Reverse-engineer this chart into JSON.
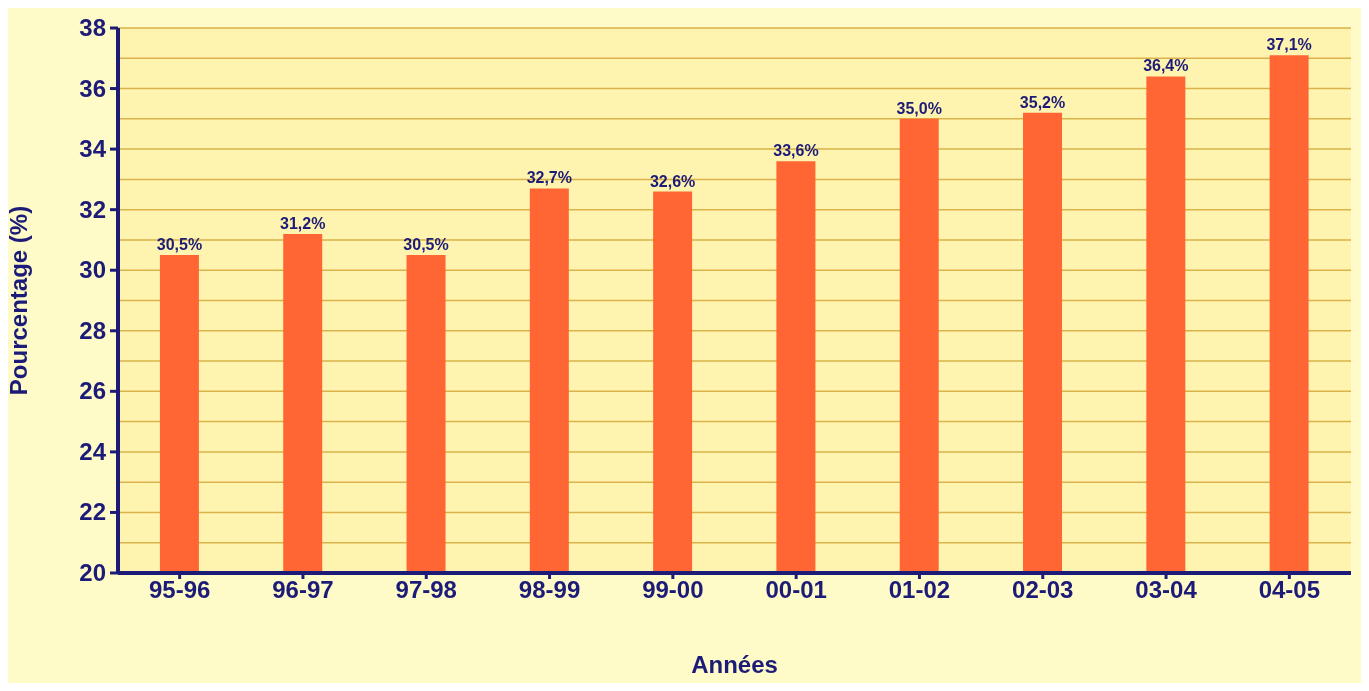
{
  "chart_data": {
    "type": "bar",
    "xlabel": "Années",
    "ylabel": "Pourcentage (%)",
    "categories": [
      "95-96",
      "96-97",
      "97-98",
      "98-99",
      "99-00",
      "00-01",
      "01-02",
      "02-03",
      "03-04",
      "04-05"
    ],
    "values": [
      30.5,
      31.2,
      30.5,
      32.7,
      32.6,
      33.6,
      35.0,
      35.2,
      36.4,
      37.1
    ],
    "value_labels": [
      "30,5%",
      "31,2%",
      "30,5%",
      "32,7%",
      "32,6%",
      "33,6%",
      "35,0%",
      "35,2%",
      "36,4%",
      "37,1%"
    ],
    "color": "#ff6633",
    "ylim": [
      20,
      38
    ],
    "yticks": [
      20,
      {
        "value": 21,
        "label": null
      },
      22,
      {
        "value": 23,
        "label": null
      },
      24,
      {
        "value": 25,
        "label": null
      },
      26,
      {
        "value": 27,
        "label": null
      },
      28,
      {
        "value": 29,
        "label": null
      },
      30,
      {
        "value": 31,
        "label": null
      },
      32,
      {
        "value": 33,
        "label": null
      },
      34,
      {
        "value": 35,
        "label": null
      },
      36,
      {
        "value": 37,
        "label": null
      },
      38
    ],
    "grid": "y"
  }
}
